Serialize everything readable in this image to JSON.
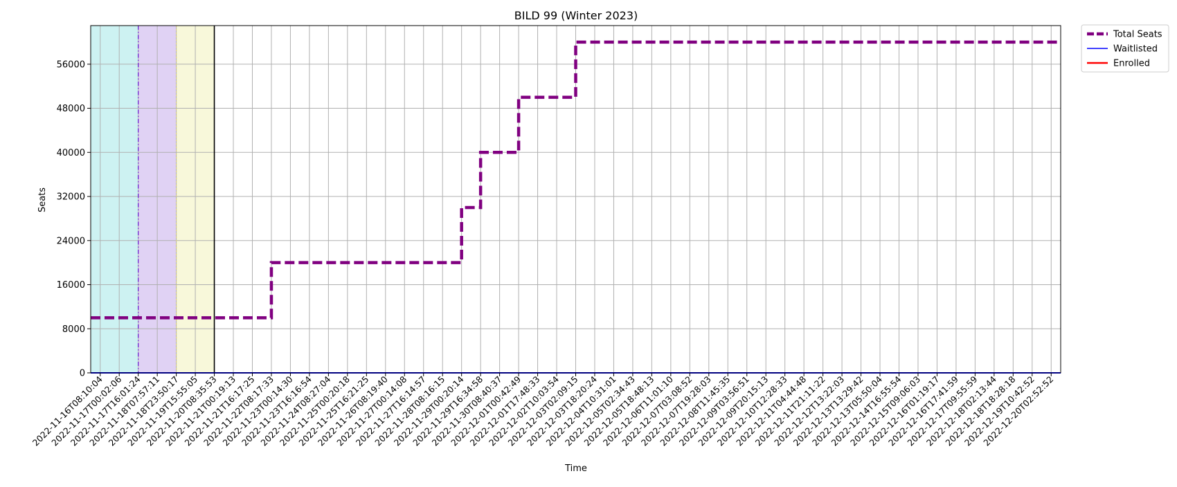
{
  "chart_data": {
    "type": "line",
    "title": "BILD 99 (Winter 2023)",
    "xlabel": "Time",
    "ylabel": "Seats",
    "ylim": [
      0,
      63000
    ],
    "yticks": [
      0,
      8000,
      16000,
      24000,
      32000,
      40000,
      48000,
      56000
    ],
    "grid": true,
    "legend_position": "outside-top-right",
    "x": [
      "2022-11-16T08:10:04",
      "2022-11-17T00:02:06",
      "2022-11-17T16:01:24",
      "2022-11-18T07:57:11",
      "2022-11-18T23:50:17",
      "2022-11-19T15:55:05",
      "2022-11-20T08:35:53",
      "2022-11-21T00:19:13",
      "2022-11-21T16:17:25",
      "2022-11-22T08:17:33",
      "2022-11-23T00:14:30",
      "2022-11-23T16:16:54",
      "2022-11-24T08:27:04",
      "2022-11-25T00:20:18",
      "2022-11-25T16:21:25",
      "2022-11-26T08:19:40",
      "2022-11-27T00:14:08",
      "2022-11-27T16:14:57",
      "2022-11-28T08:16:15",
      "2022-11-29T00:20:14",
      "2022-11-29T16:34:58",
      "2022-11-30T08:40:37",
      "2022-12-01T00:42:49",
      "2022-12-01T17:48:33",
      "2022-12-02T10:03:54",
      "2022-12-03T02:09:15",
      "2022-12-03T18:20:24",
      "2022-12-04T10:31:01",
      "2022-12-05T02:34:43",
      "2022-12-05T18:48:13",
      "2022-12-06T11:01:10",
      "2022-12-07T03:08:52",
      "2022-12-07T19:28:03",
      "2022-12-08T11:45:35",
      "2022-12-09T03:56:51",
      "2022-12-09T20:15:13",
      "2022-12-10T12:28:33",
      "2022-12-11T04:44:48",
      "2022-12-11T21:11:22",
      "2022-12-12T13:22:03",
      "2022-12-13T13:29:42",
      "2022-12-13T05:50:04",
      "2022-12-14T16:55:54",
      "2022-12-15T09:06:03",
      "2022-12-16T01:19:17",
      "2022-12-16T17:41:59",
      "2022-12-17T09:55:59",
      "2022-12-18T02:13:44",
      "2022-12-18T18:28:18",
      "2022-12-19T10:42:52",
      "2022-12-20T02:52:52"
    ],
    "series": [
      {
        "name": "Total Seats",
        "color": "#800080",
        "style": "dashed",
        "values": [
          10000,
          10000,
          10000,
          10000,
          10000,
          10000,
          10000,
          10000,
          10000,
          20000,
          20000,
          20000,
          20000,
          20000,
          20000,
          20000,
          20000,
          20000,
          20000,
          30000,
          40000,
          40000,
          50000,
          50000,
          50000,
          60000,
          60000,
          60000,
          60000,
          60000,
          60000,
          60000,
          60000,
          60000,
          60000,
          60000,
          60000,
          60000,
          60000,
          60000,
          60000,
          60000,
          60000,
          60000,
          60000,
          60000,
          60000,
          60000,
          60000,
          60000,
          60000
        ]
      },
      {
        "name": "Waitlisted",
        "color": "#0000ff",
        "style": "solid",
        "values": [
          0,
          0,
          0,
          0,
          0,
          0,
          0,
          0,
          0,
          0,
          0,
          0,
          0,
          0,
          0,
          0,
          0,
          0,
          0,
          0,
          0,
          0,
          0,
          0,
          0,
          0,
          0,
          0,
          0,
          0,
          0,
          0,
          0,
          0,
          0,
          0,
          0,
          0,
          0,
          0,
          0,
          0,
          0,
          0,
          0,
          0,
          0,
          0,
          0,
          0,
          0
        ]
      },
      {
        "name": "Enrolled",
        "color": "#ff0000",
        "style": "solid",
        "values": [
          0,
          0,
          0,
          0,
          0,
          0,
          0,
          0,
          0,
          0,
          0,
          0,
          0,
          0,
          0,
          0,
          0,
          0,
          0,
          0,
          0,
          0,
          0,
          0,
          0,
          0,
          0,
          0,
          0,
          0,
          0,
          0,
          0,
          0,
          0,
          0,
          0,
          0,
          0,
          0,
          0,
          0,
          0,
          0,
          0,
          0,
          0,
          0,
          0,
          0,
          0
        ]
      }
    ],
    "shaded_regions": [
      {
        "from": "2022-11-16T08:10:04",
        "to": "2022-11-17T16:01:24",
        "color": "#cdf2f2"
      },
      {
        "from": "2022-11-17T16:01:24",
        "to": "2022-11-18T23:50:17",
        "color": "#e0d2f4"
      },
      {
        "from": "2022-11-18T23:50:17",
        "to": "2022-11-20T08:35:53",
        "color": "#f8f8da"
      }
    ],
    "vertical_markers": [
      {
        "at": "2022-11-17T16:01:24",
        "color": "#6a1bd0",
        "style": "dashdot"
      },
      {
        "at": "2022-11-18T23:50:17",
        "color": "#e0d080",
        "style": "dotted"
      },
      {
        "at": "2022-11-20T08:35:53",
        "color": "#000000",
        "style": "solid"
      }
    ]
  }
}
